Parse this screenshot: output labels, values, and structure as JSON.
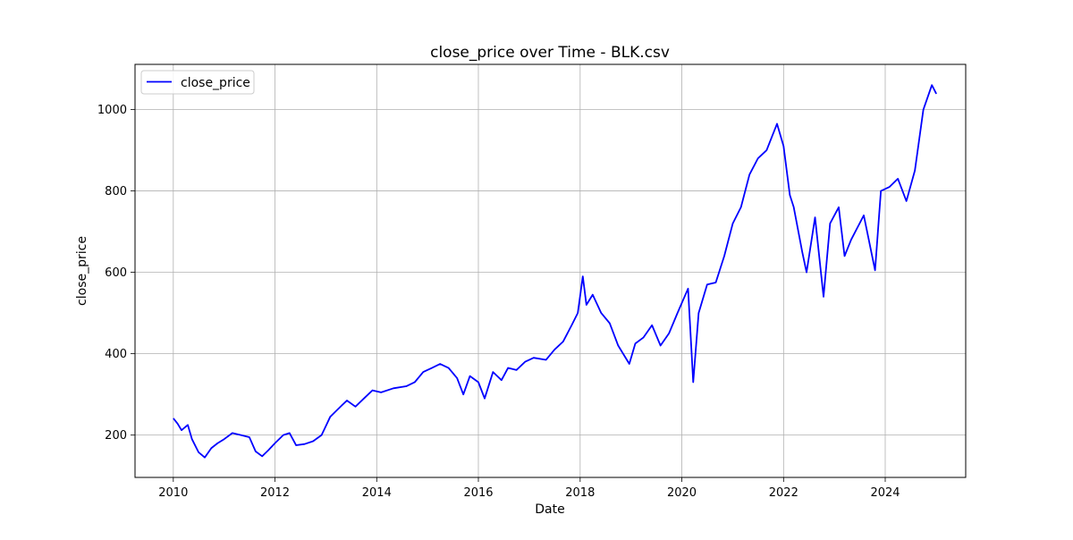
{
  "chart_data": {
    "type": "line",
    "title": "close_price over Time - BLK.csv",
    "xlabel": "Date",
    "ylabel": "close_price",
    "x_ticks": [
      "2010",
      "2012",
      "2014",
      "2016",
      "2018",
      "2020",
      "2022",
      "2024"
    ],
    "y_ticks": [
      200,
      400,
      600,
      800,
      1000
    ],
    "xlim": [
      "2009-04-01",
      "2025-08-01"
    ],
    "ylim": [
      96,
      1111
    ],
    "grid": true,
    "legend_position": "upper-left",
    "series": [
      {
        "name": "close_price",
        "color": "#0000ff",
        "points": [
          [
            "2010-01-04",
            240
          ],
          [
            "2010-02-01",
            228
          ],
          [
            "2010-03-01",
            212
          ],
          [
            "2010-04-15",
            225
          ],
          [
            "2010-05-15",
            190
          ],
          [
            "2010-07-01",
            158
          ],
          [
            "2010-08-15",
            145
          ],
          [
            "2010-10-01",
            168
          ],
          [
            "2010-11-15",
            180
          ],
          [
            "2011-01-01",
            190
          ],
          [
            "2011-03-01",
            205
          ],
          [
            "2011-05-01",
            200
          ],
          [
            "2011-07-01",
            195
          ],
          [
            "2011-08-15",
            160
          ],
          [
            "2011-10-01",
            148
          ],
          [
            "2011-11-15",
            163
          ],
          [
            "2012-01-01",
            180
          ],
          [
            "2012-03-01",
            200
          ],
          [
            "2012-04-15",
            205
          ],
          [
            "2012-06-01",
            175
          ],
          [
            "2012-08-01",
            178
          ],
          [
            "2012-10-01",
            185
          ],
          [
            "2012-12-01",
            200
          ],
          [
            "2013-02-01",
            245
          ],
          [
            "2013-04-01",
            265
          ],
          [
            "2013-06-01",
            285
          ],
          [
            "2013-08-01",
            270
          ],
          [
            "2013-10-01",
            290
          ],
          [
            "2013-12-01",
            310
          ],
          [
            "2014-02-01",
            305
          ],
          [
            "2014-05-01",
            315
          ],
          [
            "2014-08-01",
            320
          ],
          [
            "2014-10-01",
            330
          ],
          [
            "2014-12-01",
            355
          ],
          [
            "2015-02-01",
            365
          ],
          [
            "2015-04-01",
            375
          ],
          [
            "2015-06-01",
            365
          ],
          [
            "2015-08-01",
            340
          ],
          [
            "2015-09-15",
            300
          ],
          [
            "2015-11-01",
            345
          ],
          [
            "2016-01-01",
            330
          ],
          [
            "2016-02-15",
            290
          ],
          [
            "2016-04-15",
            355
          ],
          [
            "2016-06-15",
            335
          ],
          [
            "2016-08-01",
            365
          ],
          [
            "2016-10-01",
            360
          ],
          [
            "2016-12-01",
            380
          ],
          [
            "2017-02-01",
            390
          ],
          [
            "2017-05-01",
            385
          ],
          [
            "2017-07-01",
            410
          ],
          [
            "2017-09-01",
            430
          ],
          [
            "2017-11-01",
            470
          ],
          [
            "2017-12-15",
            500
          ],
          [
            "2018-01-20",
            590
          ],
          [
            "2018-02-15",
            520
          ],
          [
            "2018-04-01",
            545
          ],
          [
            "2018-06-01",
            500
          ],
          [
            "2018-08-01",
            475
          ],
          [
            "2018-10-01",
            420
          ],
          [
            "2018-12-20",
            375
          ],
          [
            "2019-02-01",
            425
          ],
          [
            "2019-04-01",
            440
          ],
          [
            "2019-06-01",
            470
          ],
          [
            "2019-08-01",
            420
          ],
          [
            "2019-10-01",
            450
          ],
          [
            "2019-12-01",
            500
          ],
          [
            "2020-02-15",
            560
          ],
          [
            "2020-03-23",
            330
          ],
          [
            "2020-05-01",
            500
          ],
          [
            "2020-07-01",
            570
          ],
          [
            "2020-09-01",
            575
          ],
          [
            "2020-11-01",
            640
          ],
          [
            "2021-01-01",
            720
          ],
          [
            "2021-03-01",
            760
          ],
          [
            "2021-05-01",
            840
          ],
          [
            "2021-07-01",
            880
          ],
          [
            "2021-09-01",
            900
          ],
          [
            "2021-11-15",
            965
          ],
          [
            "2022-01-01",
            910
          ],
          [
            "2022-02-15",
            790
          ],
          [
            "2022-03-15",
            760
          ],
          [
            "2022-05-15",
            650
          ],
          [
            "2022-06-15",
            600
          ],
          [
            "2022-08-15",
            735
          ],
          [
            "2022-10-15",
            540
          ],
          [
            "2022-12-01",
            720
          ],
          [
            "2023-02-01",
            760
          ],
          [
            "2023-03-15",
            640
          ],
          [
            "2023-05-01",
            680
          ],
          [
            "2023-07-31",
            740
          ],
          [
            "2023-10-20",
            605
          ],
          [
            "2023-12-01",
            800
          ],
          [
            "2024-02-01",
            810
          ],
          [
            "2024-04-01",
            830
          ],
          [
            "2024-06-01",
            775
          ],
          [
            "2024-08-01",
            850
          ],
          [
            "2024-10-01",
            1000
          ],
          [
            "2024-12-01",
            1060
          ],
          [
            "2024-12-31",
            1040
          ]
        ]
      }
    ]
  }
}
